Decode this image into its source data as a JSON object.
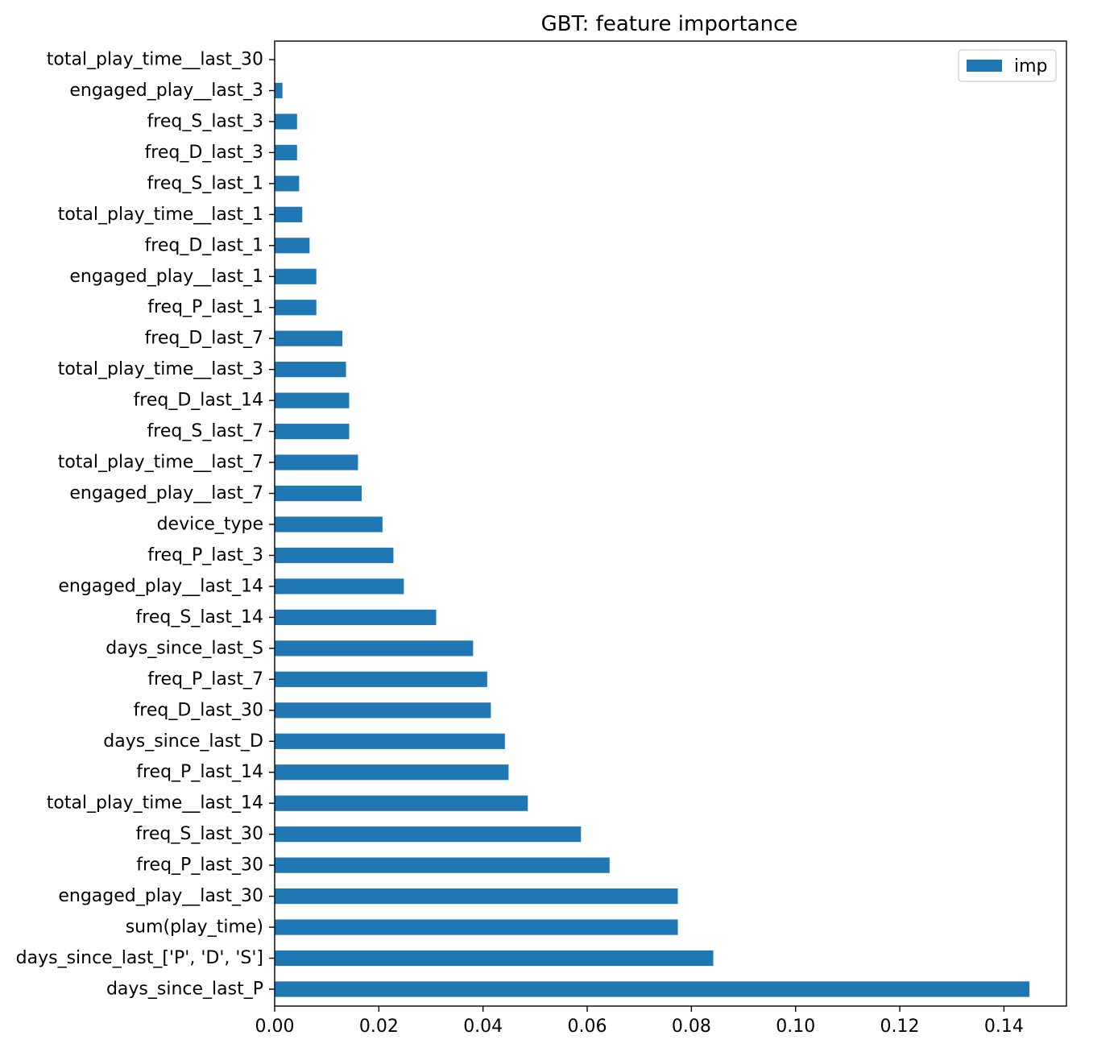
{
  "chart_data": {
    "type": "bar",
    "orientation": "horizontal",
    "title": "GBT: feature importance",
    "xlabel": "",
    "ylabel": "",
    "xlim": [
      0,
      0.152
    ],
    "xticks": [
      0.0,
      0.02,
      0.04,
      0.06,
      0.08,
      0.1,
      0.12,
      0.14
    ],
    "xtick_labels": [
      "0.00",
      "0.02",
      "0.04",
      "0.06",
      "0.08",
      "0.10",
      "0.12",
      "0.14"
    ],
    "grid": false,
    "legend": {
      "position": "top-right",
      "entries": [
        "imp"
      ]
    },
    "color": "#1f77b4",
    "categories": [
      "total_play_time__last_30",
      "engaged_play__last_3",
      "freq_S_last_3",
      "freq_D_last_3",
      "freq_S_last_1",
      "total_play_time__last_1",
      "freq_D_last_1",
      "engaged_play__last_1",
      "freq_P_last_1",
      "freq_D_last_7",
      "total_play_time__last_3",
      "freq_D_last_14",
      "freq_S_last_7",
      "total_play_time__last_7",
      "engaged_play__last_7",
      "device_type",
      "freq_P_last_3",
      "engaged_play__last_14",
      "freq_S_last_14",
      "days_since_last_S",
      "freq_P_last_7",
      "freq_D_last_30",
      "days_since_last_D",
      "freq_P_last_14",
      "total_play_time__last_14",
      "freq_S_last_30",
      "freq_P_last_30",
      "engaged_play__last_30",
      "sum(play_time)",
      "days_since_last_['P', 'D', 'S']",
      "days_since_last_P"
    ],
    "series": [
      {
        "name": "imp",
        "values": [
          0.0,
          0.0015,
          0.0043,
          0.0043,
          0.0047,
          0.0053,
          0.0067,
          0.008,
          0.008,
          0.013,
          0.0137,
          0.0143,
          0.0143,
          0.016,
          0.0167,
          0.0207,
          0.0228,
          0.0248,
          0.031,
          0.0381,
          0.0408,
          0.0415,
          0.0442,
          0.0449,
          0.0486,
          0.0588,
          0.0643,
          0.0774,
          0.0774,
          0.0842,
          0.1449
        ]
      }
    ]
  }
}
